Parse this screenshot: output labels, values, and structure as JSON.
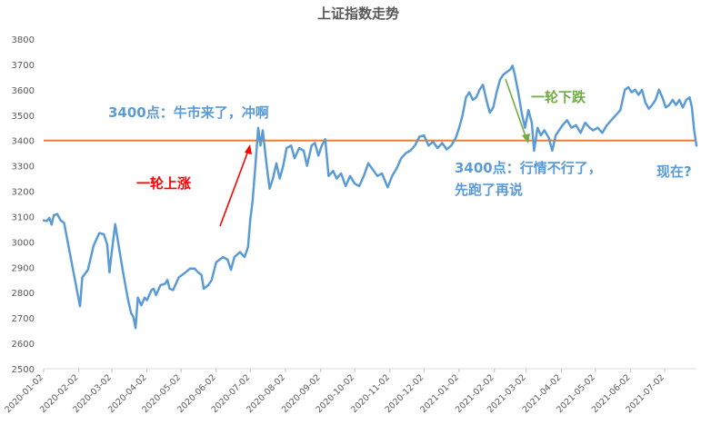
{
  "chart_data": {
    "type": "line",
    "title": "上证指数走势",
    "xlabel": "",
    "ylabel": "",
    "ylim": [
      2500,
      3800
    ],
    "yticks": [
      "3800",
      "3700",
      "3600",
      "3500",
      "3400",
      "3300",
      "3200",
      "3100",
      "3000",
      "2900",
      "2800",
      "2700",
      "2600",
      "2500"
    ],
    "xticks": [
      "2020-01-02",
      "2020-02-02",
      "2020-03-02",
      "2020-04-02",
      "2020-05-02",
      "2020-06-02",
      "2020-07-02",
      "2020-08-02",
      "2020-09-02",
      "2020-10-02",
      "2020-11-02",
      "2020-12-02",
      "2021-01-02",
      "2021-02-02",
      "2021-03-02",
      "2021-04-02",
      "2021-05-02",
      "2021-06-02",
      "2021-07-02"
    ],
    "x_end": "2021-07-30",
    "grid": false,
    "line_color": "#5b9bd5",
    "reference": {
      "value": 3400,
      "color": "#ed7d31"
    },
    "series": [
      {
        "color": "#5b9bd5",
        "points": [
          [
            "2020-01-02",
            3085
          ],
          [
            "2020-01-05",
            3083
          ],
          [
            "2020-01-07",
            3095
          ],
          [
            "2020-01-09",
            3068
          ],
          [
            "2020-01-11",
            3105
          ],
          [
            "2020-01-14",
            3110
          ],
          [
            "2020-01-17",
            3085
          ],
          [
            "2020-01-20",
            3075
          ],
          [
            "2020-02-03",
            2746
          ],
          [
            "2020-02-05",
            2860
          ],
          [
            "2020-02-10",
            2890
          ],
          [
            "2020-02-15",
            2985
          ],
          [
            "2020-02-20",
            3035
          ],
          [
            "2020-02-24",
            3030
          ],
          [
            "2020-02-27",
            2990
          ],
          [
            "2020-02-29",
            2880
          ],
          [
            "2020-03-02",
            2960
          ],
          [
            "2020-03-05",
            3070
          ],
          [
            "2020-03-09",
            2960
          ],
          [
            "2020-03-12",
            2880
          ],
          [
            "2020-03-16",
            2780
          ],
          [
            "2020-03-19",
            2720
          ],
          [
            "2020-03-21",
            2705
          ],
          [
            "2020-03-23",
            2660
          ],
          [
            "2020-03-25",
            2780
          ],
          [
            "2020-03-28",
            2750
          ],
          [
            "2020-03-31",
            2780
          ],
          [
            "2020-04-02",
            2770
          ],
          [
            "2020-04-06",
            2810
          ],
          [
            "2020-04-08",
            2815
          ],
          [
            "2020-04-10",
            2790
          ],
          [
            "2020-04-14",
            2830
          ],
          [
            "2020-04-18",
            2835
          ],
          [
            "2020-04-20",
            2850
          ],
          [
            "2020-04-22",
            2815
          ],
          [
            "2020-04-25",
            2810
          ],
          [
            "2020-04-30",
            2860
          ],
          [
            "2020-05-06",
            2880
          ],
          [
            "2020-05-10",
            2895
          ],
          [
            "2020-05-14",
            2895
          ],
          [
            "2020-05-17",
            2880
          ],
          [
            "2020-05-20",
            2870
          ],
          [
            "2020-05-22",
            2815
          ],
          [
            "2020-05-26",
            2830
          ],
          [
            "2020-05-29",
            2850
          ],
          [
            "2020-06-02",
            2920
          ],
          [
            "2020-06-05",
            2930
          ],
          [
            "2020-06-08",
            2940
          ],
          [
            "2020-06-12",
            2930
          ],
          [
            "2020-06-15",
            2890
          ],
          [
            "2020-06-18",
            2940
          ],
          [
            "2020-06-23",
            2960
          ],
          [
            "2020-06-27",
            2940
          ],
          [
            "2020-06-30",
            2980
          ],
          [
            "2020-07-02",
            3090
          ],
          [
            "2020-07-04",
            3160
          ],
          [
            "2020-07-07",
            3330
          ],
          [
            "2020-07-09",
            3450
          ],
          [
            "2020-07-11",
            3380
          ],
          [
            "2020-07-13",
            3440
          ],
          [
            "2020-07-16",
            3320
          ],
          [
            "2020-07-19",
            3210
          ],
          [
            "2020-07-22",
            3250
          ],
          [
            "2020-07-25",
            3310
          ],
          [
            "2020-07-28",
            3250
          ],
          [
            "2020-07-31",
            3300
          ],
          [
            "2020-08-03",
            3370
          ],
          [
            "2020-08-07",
            3380
          ],
          [
            "2020-08-10",
            3330
          ],
          [
            "2020-08-14",
            3370
          ],
          [
            "2020-08-18",
            3360
          ],
          [
            "2020-08-21",
            3300
          ],
          [
            "2020-08-25",
            3380
          ],
          [
            "2020-08-28",
            3390
          ],
          [
            "2020-08-31",
            3340
          ],
          [
            "2020-09-03",
            3380
          ],
          [
            "2020-09-06",
            3405
          ],
          [
            "2020-09-09",
            3260
          ],
          [
            "2020-09-13",
            3280
          ],
          [
            "2020-09-16",
            3250
          ],
          [
            "2020-09-20",
            3270
          ],
          [
            "2020-09-24",
            3220
          ],
          [
            "2020-09-28",
            3260
          ],
          [
            "2020-10-02",
            3230
          ],
          [
            "2020-10-06",
            3220
          ],
          [
            "2020-10-10",
            3260
          ],
          [
            "2020-10-14",
            3310
          ],
          [
            "2020-10-18",
            3285
          ],
          [
            "2020-10-22",
            3260
          ],
          [
            "2020-10-26",
            3270
          ],
          [
            "2020-10-31",
            3215
          ],
          [
            "2020-11-04",
            3260
          ],
          [
            "2020-11-08",
            3290
          ],
          [
            "2020-11-12",
            3330
          ],
          [
            "2020-11-16",
            3350
          ],
          [
            "2020-11-20",
            3360
          ],
          [
            "2020-11-24",
            3380
          ],
          [
            "2020-11-28",
            3415
          ],
          [
            "2020-12-02",
            3420
          ],
          [
            "2020-12-06",
            3380
          ],
          [
            "2020-12-10",
            3395
          ],
          [
            "2020-12-14",
            3370
          ],
          [
            "2020-12-18",
            3390
          ],
          [
            "2020-12-22",
            3365
          ],
          [
            "2020-12-26",
            3380
          ],
          [
            "2020-12-30",
            3410
          ],
          [
            "2021-01-02",
            3450
          ],
          [
            "2021-01-05",
            3500
          ],
          [
            "2021-01-08",
            3570
          ],
          [
            "2021-01-11",
            3590
          ],
          [
            "2021-01-14",
            3560
          ],
          [
            "2021-01-17",
            3570
          ],
          [
            "2021-01-20",
            3600
          ],
          [
            "2021-01-23",
            3620
          ],
          [
            "2021-01-26",
            3560
          ],
          [
            "2021-01-29",
            3510
          ],
          [
            "2021-02-01",
            3530
          ],
          [
            "2021-02-04",
            3590
          ],
          [
            "2021-02-07",
            3640
          ],
          [
            "2021-02-10",
            3660
          ],
          [
            "2021-02-13",
            3670
          ],
          [
            "2021-02-16",
            3680
          ],
          [
            "2021-02-18",
            3695
          ],
          [
            "2021-02-20",
            3660
          ],
          [
            "2021-02-23",
            3590
          ],
          [
            "2021-02-26",
            3510
          ],
          [
            "2021-03-01",
            3450
          ],
          [
            "2021-03-04",
            3520
          ],
          [
            "2021-03-07",
            3470
          ],
          [
            "2021-03-09",
            3360
          ],
          [
            "2021-03-12",
            3450
          ],
          [
            "2021-03-15",
            3420
          ],
          [
            "2021-03-18",
            3440
          ],
          [
            "2021-03-22",
            3410
          ],
          [
            "2021-03-25",
            3360
          ],
          [
            "2021-03-28",
            3420
          ],
          [
            "2021-03-31",
            3440
          ],
          [
            "2021-04-03",
            3460
          ],
          [
            "2021-04-07",
            3480
          ],
          [
            "2021-04-11",
            3450
          ],
          [
            "2021-04-15",
            3460
          ],
          [
            "2021-04-19",
            3430
          ],
          [
            "2021-04-23",
            3470
          ],
          [
            "2021-04-27",
            3450
          ],
          [
            "2021-04-30",
            3440
          ],
          [
            "2021-05-04",
            3450
          ],
          [
            "2021-05-08",
            3430
          ],
          [
            "2021-05-12",
            3460
          ],
          [
            "2021-05-16",
            3480
          ],
          [
            "2021-05-20",
            3500
          ],
          [
            "2021-05-24",
            3520
          ],
          [
            "2021-05-28",
            3600
          ],
          [
            "2021-05-31",
            3610
          ],
          [
            "2021-06-03",
            3590
          ],
          [
            "2021-06-06",
            3600
          ],
          [
            "2021-06-09",
            3580
          ],
          [
            "2021-06-12",
            3600
          ],
          [
            "2021-06-15",
            3550
          ],
          [
            "2021-06-18",
            3525
          ],
          [
            "2021-06-21",
            3540
          ],
          [
            "2021-06-24",
            3560
          ],
          [
            "2021-06-27",
            3600
          ],
          [
            "2021-06-30",
            3570
          ],
          [
            "2021-07-03",
            3530
          ],
          [
            "2021-07-06",
            3540
          ],
          [
            "2021-07-09",
            3560
          ],
          [
            "2021-07-12",
            3540
          ],
          [
            "2021-07-15",
            3560
          ],
          [
            "2021-07-18",
            3530
          ],
          [
            "2021-07-21",
            3560
          ],
          [
            "2021-07-24",
            3570
          ],
          [
            "2021-07-26",
            3530
          ],
          [
            "2021-07-28",
            3440
          ],
          [
            "2021-07-30",
            3380
          ]
        ]
      }
    ]
  },
  "annotations": {
    "rise_label": "一轮上涨",
    "bull_label": "3400点：牛市来了，冲啊",
    "fall_label": "一轮下跌",
    "bear_line1": "3400点：行情不行了，",
    "bear_line2": "先跑了再说",
    "now_label": "现在?",
    "rise_color": "#ff0000",
    "fall_color": "#70ad47",
    "text_color": "#5b9bd5"
  }
}
